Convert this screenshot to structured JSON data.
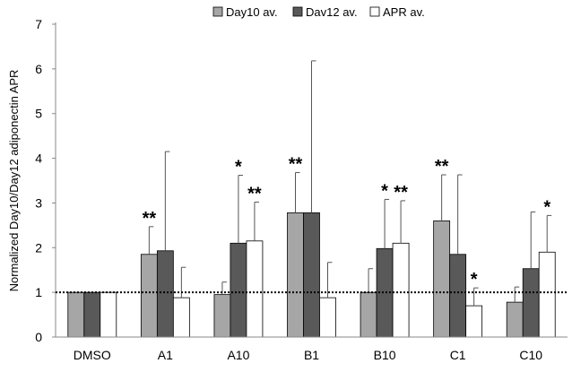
{
  "chart_data": {
    "type": "bar",
    "title": "",
    "xlabel": "",
    "ylabel": "Normalized Day10/Day12 adiponectin APR",
    "ylim": [
      0,
      7
    ],
    "yticks": [
      "0",
      "1",
      "2",
      "3",
      "4",
      "5",
      "6",
      "7"
    ],
    "categories": [
      "DMSO",
      "A1",
      "A10",
      "B1",
      "B10",
      "C1",
      "C10"
    ],
    "legend_position": "top",
    "reference_line": 1,
    "series": [
      {
        "name": "Day10 av.",
        "color": "#a6a6a6",
        "values": [
          1.0,
          1.85,
          0.95,
          2.78,
          1.0,
          2.6,
          0.78
        ],
        "errors": [
          0,
          0.62,
          0.28,
          0.9,
          0.53,
          1.03,
          0.34
        ],
        "significance": [
          "",
          "**",
          "",
          "**",
          "",
          "**",
          ""
        ]
      },
      {
        "name": "Dav12 av.",
        "color": "#595959",
        "values": [
          1.0,
          1.93,
          2.1,
          2.78,
          1.98,
          1.85,
          1.53
        ],
        "errors": [
          0,
          2.22,
          1.52,
          3.4,
          1.1,
          1.78,
          1.27
        ],
        "significance": [
          "",
          "",
          "*",
          "",
          "*",
          "",
          ""
        ]
      },
      {
        "name": "APR av.",
        "color": "#ffffff",
        "values": [
          1.0,
          0.88,
          2.15,
          0.88,
          2.1,
          0.7,
          1.9
        ],
        "errors": [
          0,
          0.68,
          0.87,
          0.79,
          0.95,
          0.4,
          0.82
        ],
        "significance": [
          "",
          "",
          "**",
          "",
          "**",
          "*",
          "*"
        ]
      }
    ]
  }
}
